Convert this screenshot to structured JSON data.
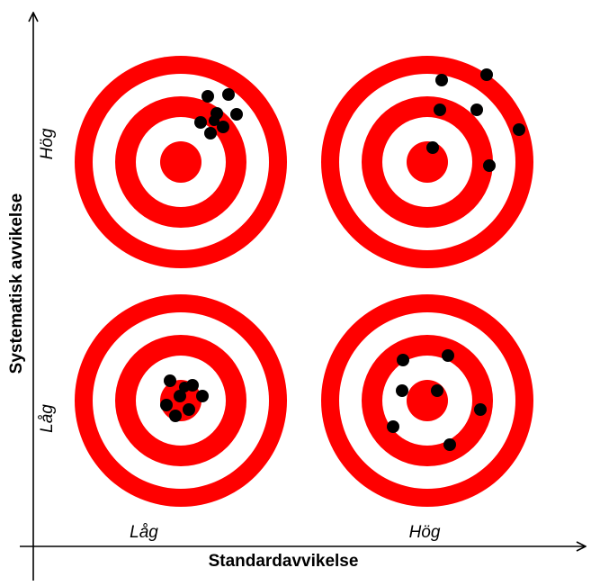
{
  "axes": {
    "x_title": "Standardavvikelse",
    "y_title": "Systematisk avvikelse",
    "x_low": "Låg",
    "x_high": "Hög",
    "y_high": "Hög",
    "y_low": "Låg"
  },
  "colors": {
    "ring": "#ff0000",
    "background": "#ffffff",
    "shot": "#000000",
    "axis": "#000000"
  },
  "targets": [
    {
      "name": "target-high-bias-low-spread",
      "bias": "Hög",
      "spread": "Låg",
      "shots": 8
    },
    {
      "name": "target-high-bias-high-spread",
      "bias": "Hög",
      "spread": "Hög",
      "shots": 7
    },
    {
      "name": "target-low-bias-low-spread",
      "bias": "Låg",
      "spread": "Låg",
      "shots": 8
    },
    {
      "name": "target-low-bias-high-spread",
      "bias": "Låg",
      "spread": "Hög",
      "shots": 7
    }
  ]
}
